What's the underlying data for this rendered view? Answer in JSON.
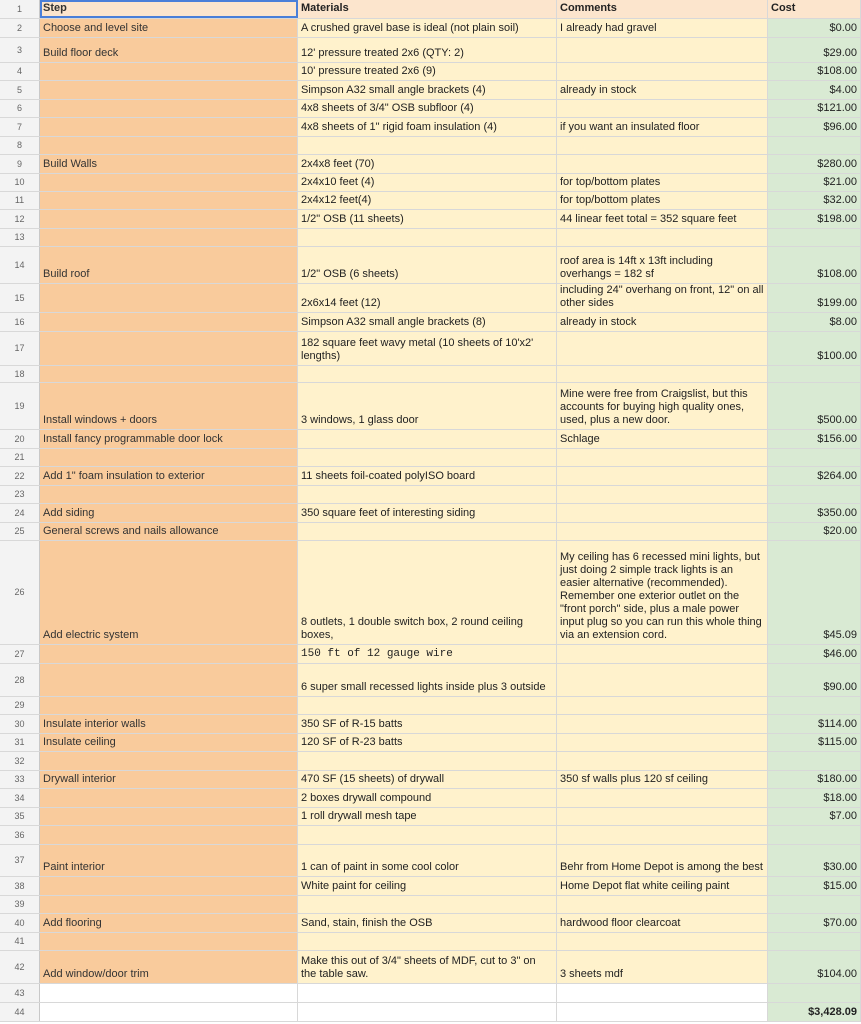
{
  "header": {
    "row": "1",
    "step": "Step",
    "materials": "Materials",
    "comments": "Comments",
    "cost": "Cost"
  },
  "rows": [
    {
      "n": "2",
      "step": "Choose and level site",
      "materials": "A crushed gravel base is ideal (not plain soil)",
      "comments": "I already had gravel",
      "cost": "$0.00"
    },
    {
      "n": "3",
      "step": "Build floor deck",
      "materials": "12' pressure treated 2x6 (QTY: 2)",
      "comments": "",
      "cost": "$29.00"
    },
    {
      "n": "4",
      "step": "",
      "materials": "10' pressure treated 2x6 (9)",
      "comments": "",
      "cost": "$108.00"
    },
    {
      "n": "5",
      "step": "",
      "materials": "Simpson A32 small angle brackets (4)",
      "comments": "already in stock",
      "cost": "$4.00"
    },
    {
      "n": "6",
      "step": "",
      "materials": "4x8 sheets of 3/4\" OSB subfloor (4)",
      "comments": "",
      "cost": "$121.00"
    },
    {
      "n": "7",
      "step": "",
      "materials": "4x8 sheets of 1\" rigid foam insulation (4)",
      "comments": "if you want an insulated floor",
      "cost": "$96.00"
    },
    {
      "n": "8",
      "step": "",
      "materials": "",
      "comments": "",
      "cost": ""
    },
    {
      "n": "9",
      "step": "Build Walls",
      "materials": "2x4x8 feet (70)",
      "comments": "",
      "cost": "$280.00"
    },
    {
      "n": "10",
      "step": "",
      "materials": "2x4x10 feet (4)",
      "comments": "for top/bottom plates",
      "cost": "$21.00"
    },
    {
      "n": "11",
      "step": "",
      "materials": "2x4x12 feet(4)",
      "comments": "for top/bottom plates",
      "cost": "$32.00"
    },
    {
      "n": "12",
      "step": "",
      "materials": "1/2\" OSB (11 sheets)",
      "comments": "44 linear feet total = 352 square feet",
      "cost": "$198.00"
    },
    {
      "n": "13",
      "step": "",
      "materials": "",
      "comments": "",
      "cost": ""
    },
    {
      "n": "14",
      "step": "Build roof",
      "materials": "1/2\" OSB (6 sheets)",
      "comments": "roof area is 14ft x 13ft including overhangs = 182 sf",
      "cost": "$108.00"
    },
    {
      "n": "15",
      "step": "",
      "materials": "2x6x14 feet (12)",
      "comments": "including 24\" overhang on front, 12\" on all other sides",
      "cost": "$199.00"
    },
    {
      "n": "16",
      "step": "",
      "materials": "Simpson A32 small angle brackets (8)",
      "comments": "already in stock",
      "cost": "$8.00"
    },
    {
      "n": "17",
      "step": "",
      "materials": "182 square feet wavy metal (10 sheets of 10'x2' lengths)",
      "comments": "",
      "cost": "$100.00"
    },
    {
      "n": "18",
      "step": "",
      "materials": "",
      "comments": "",
      "cost": ""
    },
    {
      "n": "19",
      "step": "Install windows + doors",
      "materials": "3 windows, 1 glass door",
      "comments": "Mine were free from Craigslist, but this accounts for buying high quality ones, used, plus a new door.",
      "cost": "$500.00"
    },
    {
      "n": "20",
      "step": "Install fancy programmable door lock",
      "materials": "",
      "comments": "Schlage",
      "cost": "$156.00"
    },
    {
      "n": "21",
      "step": "",
      "materials": "",
      "comments": "",
      "cost": ""
    },
    {
      "n": "22",
      "step": "Add 1\" foam insulation to exterior",
      "materials": "11 sheets foil-coated polyISO board",
      "comments": "",
      "cost": "$264.00"
    },
    {
      "n": "23",
      "step": "",
      "materials": "",
      "comments": "",
      "cost": ""
    },
    {
      "n": "24",
      "step": "Add siding",
      "materials": "350 square feet of interesting siding",
      "comments": "",
      "cost": "$350.00"
    },
    {
      "n": "25",
      "step": "General screws and nails allowance",
      "materials": "",
      "comments": "",
      "cost": "$20.00"
    },
    {
      "n": "26",
      "step": "Add electric system",
      "materials": "8 outlets, 1 double switch box, 2 round ceiling boxes,",
      "comments": "My ceiling has 6 recessed mini lights, but just doing 2 simple track lights is an easier alternative (recommended). Remember one exterior outlet on the \"front porch\" side, plus a male power input plug so you can run this whole thing via an extension cord.",
      "cost": "$45.09"
    },
    {
      "n": "27",
      "step": "",
      "materials": "150 ft of 12 gauge wire",
      "comments": "",
      "cost": "$46.00"
    },
    {
      "n": "28",
      "step": "",
      "materials": "6 super small recessed lights inside plus 3 outside",
      "comments": "",
      "cost": "$90.00"
    },
    {
      "n": "29",
      "step": "",
      "materials": "",
      "comments": "",
      "cost": ""
    },
    {
      "n": "30",
      "step": "Insulate interior walls",
      "materials": "350 SF of R-15 batts",
      "comments": "",
      "cost": "$114.00"
    },
    {
      "n": "31",
      "step": "Insulate ceiling",
      "materials": "120 SF of R-23 batts",
      "comments": "",
      "cost": "$115.00"
    },
    {
      "n": "32",
      "step": "",
      "materials": "",
      "comments": "",
      "cost": ""
    },
    {
      "n": "33",
      "step": "Drywall interior",
      "materials": "470 SF (15 sheets) of drywall",
      "comments": "350 sf walls plus 120 sf ceiling",
      "cost": "$180.00"
    },
    {
      "n": "34",
      "step": "",
      "materials": "2 boxes drywall compound",
      "comments": "",
      "cost": "$18.00"
    },
    {
      "n": "35",
      "step": "",
      "materials": "1 roll drywall mesh tape",
      "comments": "",
      "cost": "$7.00"
    },
    {
      "n": "36",
      "step": "",
      "materials": "",
      "comments": "",
      "cost": ""
    },
    {
      "n": "37",
      "step": "Paint interior",
      "materials": " 1 can of paint in some cool color",
      "comments": "Behr from Home Depot is among the best",
      "cost": "$30.00"
    },
    {
      "n": "38",
      "step": "",
      "materials": "White paint for ceiling",
      "comments": "Home Depot flat white ceiling paint",
      "cost": "$15.00"
    },
    {
      "n": "39",
      "step": "",
      "materials": "",
      "comments": "",
      "cost": ""
    },
    {
      "n": "40",
      "step": "Add flooring",
      "materials": "Sand, stain, finish the OSB",
      "comments": "hardwood floor clearcoat",
      "cost": "$70.00"
    },
    {
      "n": "41",
      "step": "",
      "materials": "",
      "comments": "",
      "cost": ""
    },
    {
      "n": "42",
      "step": "Add window/door trim",
      "materials": "Make this out of 3/4\" sheets of MDF, cut to 3\" on the table saw.",
      "comments": "3 sheets mdf",
      "cost": "$104.00"
    },
    {
      "n": "43",
      "step": "",
      "materials": "",
      "comments": "",
      "cost": ""
    },
    {
      "n": "44",
      "step": "",
      "materials": "",
      "comments": "",
      "cost": "$3,428.09"
    }
  ],
  "colors": {
    "header": "#fce5cd",
    "step": "#f9cb9c",
    "materials": "#fff2cc",
    "comments": "#fff2cc",
    "cost": "#d9ead3",
    "selection": "#4a7fd9"
  }
}
